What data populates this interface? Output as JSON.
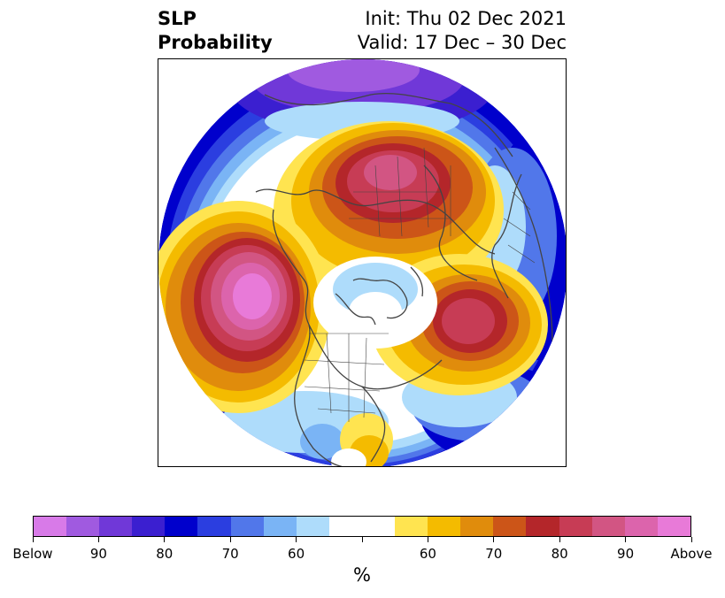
{
  "header": {
    "title_line1": "SLP",
    "title_line2": "Probability",
    "init_label": "Init: Thu 02 Dec 2021",
    "valid_label": "Valid: 17 Dec – 30 Dec"
  },
  "colorbar": {
    "colors": [
      "#d87ae8",
      "#a05ae0",
      "#7038d8",
      "#3b1fd0",
      "#0000cc",
      "#2b3ee0",
      "#5177ea",
      "#7ab4f5",
      "#aedcfb",
      "#ffffff",
      "#ffffff",
      "#ffe450",
      "#f4bb00",
      "#e08c0c",
      "#cc5518",
      "#b4262a",
      "#c73c55",
      "#d25583",
      "#dc64ac",
      "#e87ad8"
    ],
    "tick_labels": [
      "Below",
      "90",
      "80",
      "70",
      "60",
      "",
      "60",
      "70",
      "80",
      "90",
      "Above"
    ],
    "unit": "%"
  },
  "colors": {
    "continent_line": "#444444"
  }
}
